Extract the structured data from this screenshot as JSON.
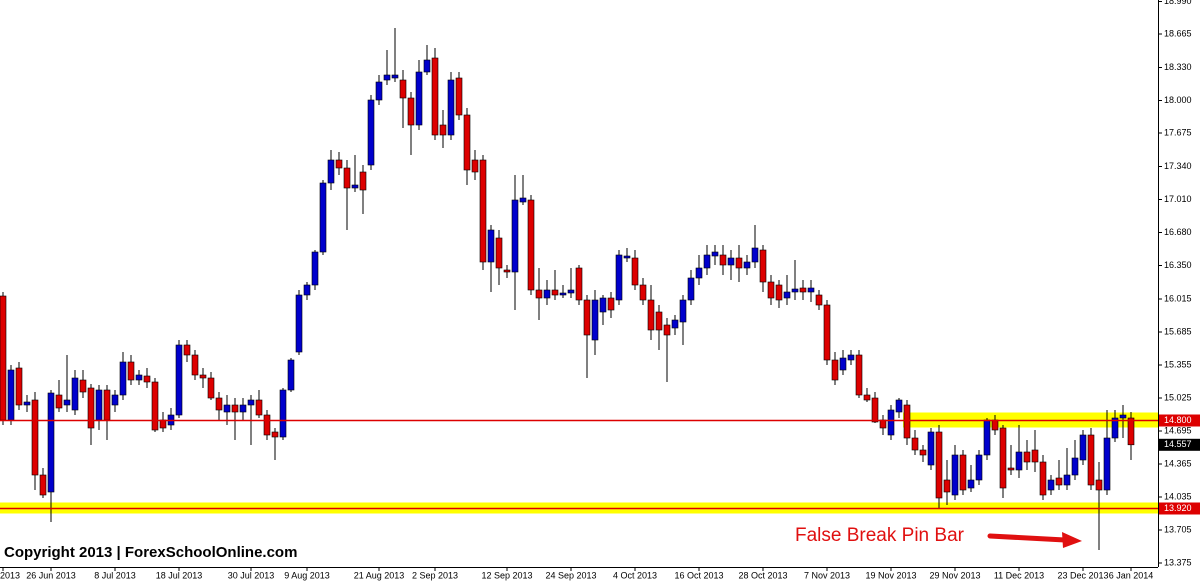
{
  "chart_data": {
    "type": "candlestick",
    "watermark": "Copyright 2013 | ForexSchoolOnline.com",
    "annotation": "False Break Pin Bar",
    "up_color": "#0000cc",
    "down_color": "#dd0000",
    "ylim": [
      13.335,
      19.005
    ],
    "yticks": [
      {
        "value": 18.99,
        "label": "18.990"
      },
      {
        "value": 18.665,
        "label": "18.665"
      },
      {
        "value": 18.33,
        "label": "18.330"
      },
      {
        "value": 18.0,
        "label": "18.000"
      },
      {
        "value": 17.675,
        "label": "17.675"
      },
      {
        "value": 17.34,
        "label": "17.340"
      },
      {
        "value": 17.01,
        "label": "17.010"
      },
      {
        "value": 16.68,
        "label": "16.680"
      },
      {
        "value": 16.35,
        "label": "16.350"
      },
      {
        "value": 16.015,
        "label": "16.015"
      },
      {
        "value": 15.685,
        "label": "15.685"
      },
      {
        "value": 15.355,
        "label": "15.355"
      },
      {
        "value": 15.025,
        "label": "15.025"
      },
      {
        "value": 14.695,
        "label": "14.695"
      },
      {
        "value": 14.365,
        "label": "14.365"
      },
      {
        "value": 14.035,
        "label": "14.035"
      },
      {
        "value": 13.705,
        "label": "13.705"
      },
      {
        "value": 13.375,
        "label": "13.375"
      }
    ],
    "levels": [
      {
        "value": 14.8,
        "label": "14.800",
        "color": "#dd0000"
      },
      {
        "value": 13.92,
        "label": "13.920",
        "color": "#dd0000"
      }
    ],
    "last_price": 14.557,
    "zones": [
      {
        "low": 14.73,
        "high": 14.88,
        "from": 113,
        "color": "#ffff00"
      },
      {
        "low": 13.87,
        "high": 13.98,
        "color": "#ffff00"
      }
    ],
    "categories": [
      "2013",
      null,
      null,
      null,
      null,
      null,
      "26 Jun 2013",
      null,
      null,
      null,
      null,
      null,
      null,
      null,
      "8 Jul 2013",
      null,
      null,
      null,
      null,
      null,
      null,
      null,
      "18 Jul 2013",
      null,
      null,
      null,
      null,
      null,
      null,
      null,
      null,
      "30 Jul 2013",
      null,
      null,
      null,
      null,
      null,
      null,
      "9 Aug 2013",
      null,
      null,
      null,
      null,
      null,
      null,
      null,
      null,
      "21 Aug 2013",
      null,
      null,
      null,
      null,
      null,
      null,
      "2 Sep 2013",
      null,
      null,
      null,
      null,
      null,
      null,
      null,
      null,
      "12 Sep 2013",
      null,
      null,
      null,
      null,
      null,
      null,
      null,
      "24 Sep 2013",
      null,
      null,
      null,
      null,
      null,
      null,
      null,
      "4 Oct 2013",
      null,
      null,
      null,
      null,
      null,
      null,
      null,
      "16 Oct 2013",
      null,
      null,
      null,
      null,
      null,
      null,
      null,
      "28 Oct 2013",
      null,
      null,
      null,
      null,
      null,
      null,
      null,
      "7 Nov 2013",
      null,
      null,
      null,
      null,
      null,
      null,
      null,
      "19 Nov 2013",
      null,
      null,
      null,
      null,
      null,
      null,
      null,
      "29 Nov 2013",
      null,
      null,
      null,
      null,
      null,
      null,
      null,
      "11 Dec 2013",
      null,
      null,
      null,
      null,
      null,
      null,
      null,
      "23 Dec 2013",
      null,
      null,
      null,
      null,
      null,
      "6 Jan 2014"
    ],
    "candles": [
      [
        16.045,
        16.085,
        14.755,
        14.805
      ],
      [
        14.805,
        15.355,
        14.755,
        15.305
      ],
      [
        15.325,
        15.385,
        14.905,
        14.955
      ],
      [
        14.955,
        15.055,
        14.885,
        14.985
      ],
      [
        15.005,
        15.085,
        14.105,
        14.255
      ],
      [
        14.255,
        14.325,
        14.025,
        14.055
      ],
      [
        14.085,
        15.105,
        13.785,
        15.075
      ],
      [
        15.055,
        15.205,
        14.885,
        14.925
      ],
      [
        14.955,
        15.455,
        14.885,
        15.005
      ],
      [
        14.905,
        15.305,
        14.855,
        15.225
      ],
      [
        15.205,
        15.305,
        15.025,
        15.085
      ],
      [
        15.125,
        15.165,
        14.555,
        14.725
      ],
      [
        14.805,
        15.155,
        14.705,
        15.105
      ],
      [
        15.105,
        15.155,
        14.605,
        14.805
      ],
      [
        14.955,
        15.105,
        14.885,
        15.055
      ],
      [
        15.055,
        15.485,
        15.005,
        15.385
      ],
      [
        15.385,
        15.455,
        15.155,
        15.205
      ],
      [
        15.205,
        15.305,
        15.155,
        15.255
      ],
      [
        15.245,
        15.325,
        15.125,
        15.185
      ],
      [
        15.185,
        15.225,
        14.685,
        14.705
      ],
      [
        14.805,
        14.885,
        14.685,
        14.725
      ],
      [
        14.755,
        14.925,
        14.705,
        14.855
      ],
      [
        14.855,
        15.605,
        14.825,
        15.555
      ],
      [
        15.555,
        15.605,
        15.385,
        15.455
      ],
      [
        15.455,
        15.505,
        15.205,
        15.255
      ],
      [
        15.255,
        15.325,
        15.125,
        15.225
      ],
      [
        15.225,
        15.285,
        15.005,
        15.025
      ],
      [
        15.025,
        15.085,
        14.805,
        14.905
      ],
      [
        14.885,
        15.055,
        14.755,
        14.955
      ],
      [
        14.955,
        15.025,
        14.605,
        14.885
      ],
      [
        14.885,
        15.025,
        14.805,
        14.955
      ],
      [
        14.955,
        15.055,
        14.555,
        15.005
      ],
      [
        15.005,
        15.105,
        14.825,
        14.855
      ],
      [
        14.855,
        14.905,
        14.605,
        14.655
      ],
      [
        14.685,
        14.725,
        14.405,
        14.635
      ],
      [
        14.635,
        15.125,
        14.605,
        15.105
      ],
      [
        15.105,
        15.425,
        15.085,
        15.405
      ],
      [
        15.485,
        16.105,
        15.455,
        16.055
      ],
      [
        16.055,
        16.185,
        16.005,
        16.155
      ],
      [
        16.155,
        16.505,
        16.105,
        16.485
      ],
      [
        16.485,
        17.205,
        16.455,
        17.175
      ],
      [
        17.175,
        17.505,
        17.105,
        17.405
      ],
      [
        17.405,
        17.485,
        17.255,
        17.325
      ],
      [
        17.325,
        17.405,
        16.705,
        17.125
      ],
      [
        17.125,
        17.455,
        17.085,
        17.155
      ],
      [
        17.285,
        17.355,
        16.865,
        17.105
      ],
      [
        17.355,
        18.055,
        17.305,
        18.005
      ],
      [
        18.005,
        18.255,
        17.955,
        18.185
      ],
      [
        18.205,
        18.505,
        18.155,
        18.255
      ],
      [
        18.225,
        18.725,
        18.185,
        18.255
      ],
      [
        18.205,
        18.305,
        17.725,
        18.025
      ],
      [
        18.025,
        18.085,
        17.455,
        17.755
      ],
      [
        17.755,
        18.405,
        17.705,
        18.285
      ],
      [
        18.285,
        18.555,
        18.255,
        18.405
      ],
      [
        18.425,
        18.525,
        17.605,
        17.655
      ],
      [
        17.755,
        17.905,
        17.525,
        17.655
      ],
      [
        17.655,
        18.285,
        17.605,
        18.205
      ],
      [
        18.225,
        18.285,
        17.805,
        17.855
      ],
      [
        17.855,
        17.925,
        17.155,
        17.305
      ],
      [
        17.405,
        17.505,
        17.205,
        17.285
      ],
      [
        17.405,
        17.455,
        16.305,
        16.385
      ],
      [
        16.385,
        16.755,
        16.085,
        16.705
      ],
      [
        16.625,
        16.705,
        16.155,
        16.325
      ],
      [
        16.305,
        16.355,
        16.225,
        16.285
      ],
      [
        16.285,
        17.255,
        15.905,
        17.005
      ],
      [
        16.985,
        17.255,
        16.955,
        17.025
      ],
      [
        17.005,
        17.055,
        16.055,
        16.105
      ],
      [
        16.105,
        16.325,
        15.805,
        16.025
      ],
      [
        16.025,
        16.205,
        15.955,
        16.105
      ],
      [
        16.105,
        16.305,
        16.005,
        16.055
      ],
      [
        16.055,
        16.155,
        16.025,
        16.075
      ],
      [
        16.075,
        16.325,
        16.025,
        16.105
      ],
      [
        16.325,
        16.355,
        15.955,
        16.005
      ],
      [
        16.005,
        16.055,
        15.225,
        15.655
      ],
      [
        15.605,
        16.105,
        15.455,
        16.005
      ],
      [
        15.885,
        16.055,
        15.755,
        16.025
      ],
      [
        16.025,
        16.085,
        15.825,
        15.905
      ],
      [
        16.005,
        16.505,
        15.955,
        16.455
      ],
      [
        16.425,
        16.525,
        16.385,
        16.445
      ],
      [
        16.425,
        16.505,
        16.105,
        16.155
      ],
      [
        16.155,
        16.225,
        15.955,
        16.005
      ],
      [
        16.005,
        16.155,
        15.605,
        15.705
      ],
      [
        15.885,
        15.955,
        15.505,
        15.705
      ],
      [
        15.755,
        15.825,
        15.185,
        15.655
      ],
      [
        15.725,
        15.855,
        15.655,
        15.805
      ],
      [
        15.785,
        16.055,
        15.555,
        16.005
      ],
      [
        16.005,
        16.305,
        15.955,
        16.225
      ],
      [
        16.225,
        16.455,
        16.155,
        16.325
      ],
      [
        16.325,
        16.555,
        16.255,
        16.455
      ],
      [
        16.445,
        16.555,
        16.355,
        16.485
      ],
      [
        16.455,
        16.555,
        16.255,
        16.355
      ],
      [
        16.355,
        16.505,
        16.205,
        16.425
      ],
      [
        16.425,
        16.555,
        16.185,
        16.325
      ],
      [
        16.325,
        16.455,
        16.255,
        16.385
      ],
      [
        16.385,
        16.755,
        16.325,
        16.525
      ],
      [
        16.505,
        16.555,
        16.085,
        16.185
      ],
      [
        16.185,
        16.255,
        15.955,
        16.025
      ],
      [
        16.155,
        16.205,
        15.925,
        16.005
      ],
      [
        16.025,
        16.255,
        15.955,
        16.085
      ],
      [
        16.085,
        16.405,
        16.005,
        16.115
      ],
      [
        16.125,
        16.205,
        16.005,
        16.085
      ],
      [
        16.085,
        16.205,
        15.985,
        16.125
      ],
      [
        16.055,
        16.105,
        15.905,
        15.955
      ],
      [
        15.955,
        16.005,
        15.355,
        15.405
      ],
      [
        15.405,
        15.485,
        15.155,
        15.205
      ],
      [
        15.305,
        15.505,
        15.255,
        15.425
      ],
      [
        15.405,
        15.505,
        15.355,
        15.455
      ],
      [
        15.455,
        15.505,
        15.025,
        15.055
      ],
      [
        15.055,
        15.125,
        14.985,
        15.005
      ],
      [
        15.025,
        15.085,
        14.775,
        14.785
      ],
      [
        14.805,
        14.855,
        14.655,
        14.725
      ],
      [
        14.655,
        14.955,
        14.605,
        14.905
      ],
      [
        14.885,
        15.025,
        14.825,
        15.005
      ],
      [
        14.955,
        15.005,
        14.555,
        14.625
      ],
      [
        14.625,
        14.705,
        14.455,
        14.505
      ],
      [
        14.505,
        14.555,
        14.385,
        14.455
      ],
      [
        14.355,
        14.725,
        14.305,
        14.685
      ],
      [
        14.685,
        14.755,
        13.925,
        14.025
      ],
      [
        14.205,
        14.405,
        13.955,
        14.085
      ],
      [
        14.055,
        14.555,
        14.005,
        14.455
      ],
      [
        14.455,
        14.505,
        14.055,
        14.105
      ],
      [
        14.125,
        14.355,
        14.085,
        14.205
      ],
      [
        14.205,
        14.505,
        14.155,
        14.455
      ],
      [
        14.455,
        14.825,
        14.405,
        14.805
      ],
      [
        14.805,
        14.855,
        14.655,
        14.705
      ],
      [
        14.725,
        14.755,
        14.025,
        14.125
      ],
      [
        14.325,
        14.555,
        14.255,
        14.305
      ],
      [
        14.305,
        14.755,
        14.225,
        14.485
      ],
      [
        14.485,
        14.605,
        14.305,
        14.385
      ],
      [
        14.505,
        14.705,
        14.285,
        14.385
      ],
      [
        14.385,
        14.455,
        14.005,
        14.055
      ],
      [
        14.105,
        14.255,
        14.055,
        14.205
      ],
      [
        14.225,
        14.405,
        14.105,
        14.155
      ],
      [
        14.155,
        14.525,
        14.105,
        14.255
      ],
      [
        14.255,
        14.605,
        14.205,
        14.425
      ],
      [
        14.405,
        14.705,
        14.355,
        14.655
      ],
      [
        14.655,
        14.725,
        14.105,
        14.155
      ],
      [
        14.205,
        14.385,
        13.505,
        14.105
      ],
      [
        14.105,
        14.905,
        14.055,
        14.625
      ],
      [
        14.625,
        14.905,
        14.585,
        14.825
      ],
      [
        14.825,
        14.955,
        14.625,
        14.855
      ],
      [
        14.825,
        14.885,
        14.405,
        14.557
      ]
    ]
  }
}
